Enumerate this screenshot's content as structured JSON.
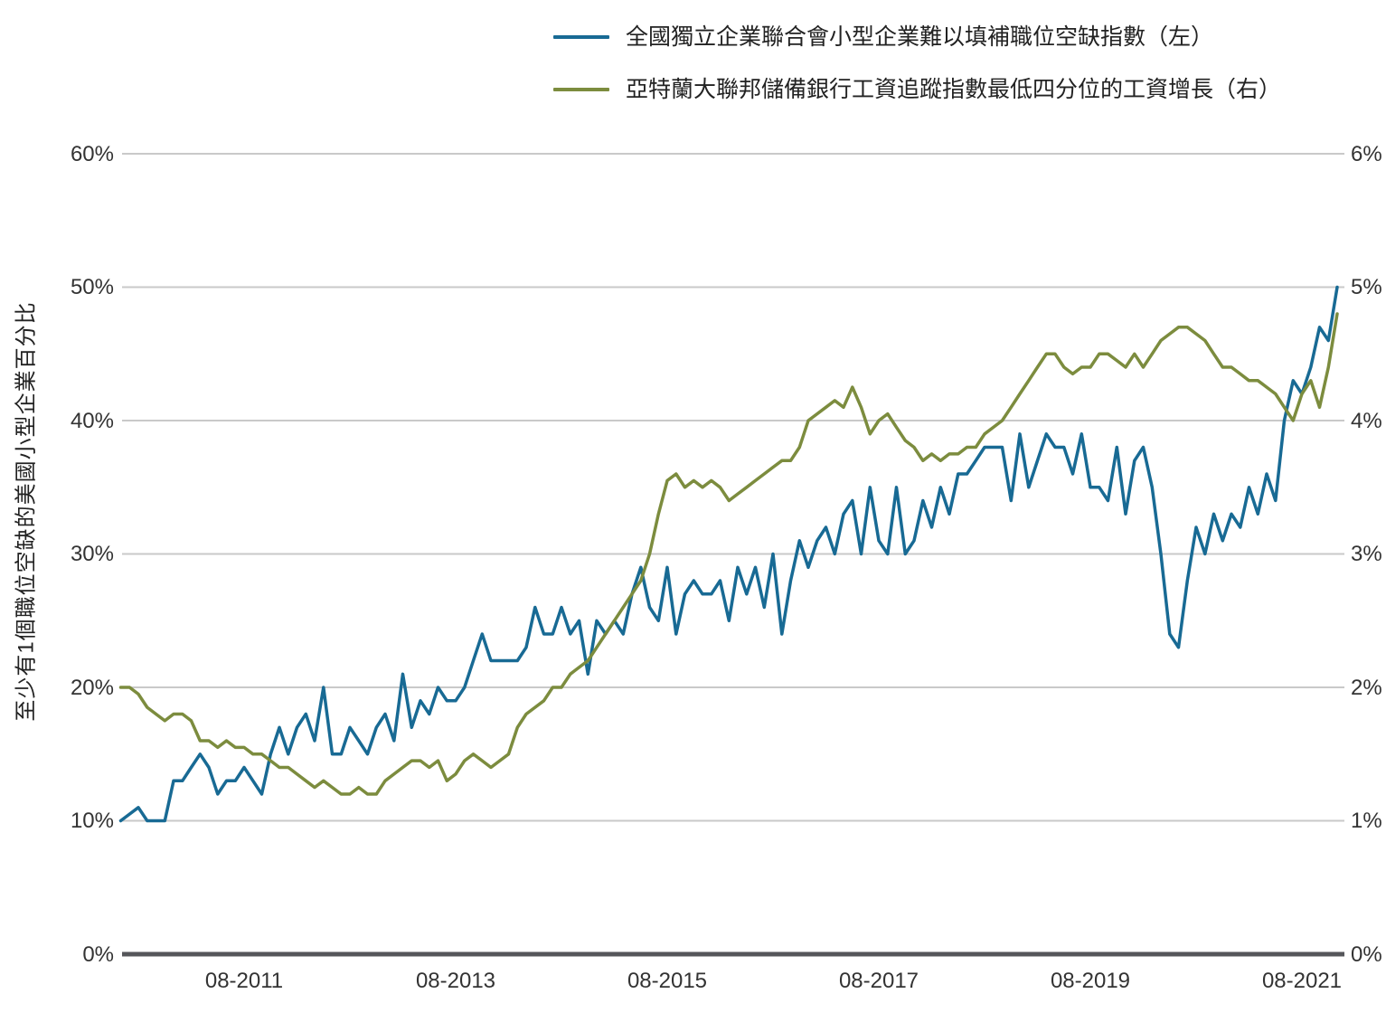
{
  "legend": [
    {
      "label": "全國獨立企業聯合會小型企業難以填補職位空缺指數（左）",
      "color": "#186A94"
    },
    {
      "label": "亞特蘭大聯邦儲備銀行工資追蹤指數最低四分位的工資增長（右）",
      "color": "#7C8C3E"
    }
  ],
  "axes": {
    "y_axis_title": "至少有1個職位空缺的美國小型企業百分比",
    "left_ticks": [
      "60%",
      "50%",
      "40%",
      "30%",
      "20%",
      "10%",
      "0%"
    ],
    "right_ticks": [
      "6%",
      "5%",
      "4%",
      "3%",
      "2%",
      "1%",
      "0%"
    ],
    "x_ticks": [
      "08-2011",
      "08-2013",
      "08-2015",
      "08-2017",
      "08-2019",
      "08-2021"
    ]
  },
  "chart_data": {
    "type": "line",
    "frequency": "monthly",
    "x_start": "2010-06",
    "x_end": "2021-12",
    "x_tick_labels": [
      "08-2011",
      "08-2013",
      "08-2015",
      "08-2017",
      "08-2019",
      "08-2021"
    ],
    "x_tick_month_index": [
      14,
      38,
      62,
      86,
      110,
      134
    ],
    "grid": "horizontal",
    "legend_position": "top",
    "left_axis": {
      "range": [
        0,
        60
      ],
      "unit": "%",
      "tick_step": 10
    },
    "right_axis": {
      "range": [
        0,
        6
      ],
      "unit": "%",
      "tick_step": 1
    },
    "series": [
      {
        "name": "全國獨立企業聯合會小型企業難以填補職位空缺指數（左）",
        "axis": "left",
        "color": "#186A94",
        "values": [
          10,
          10.5,
          11,
          10,
          10,
          10,
          13,
          13,
          14,
          15,
          14,
          12,
          13,
          13,
          14,
          13,
          12,
          15,
          17,
          15,
          17,
          18,
          16,
          20,
          15,
          15,
          17,
          16,
          15,
          17,
          18,
          16,
          21,
          17,
          19,
          18,
          20,
          19,
          19,
          20,
          22,
          24,
          22,
          22,
          22,
          22,
          23,
          26,
          24,
          24,
          26,
          24,
          25,
          21,
          25,
          24,
          25,
          24,
          27,
          29,
          26,
          25,
          29,
          24,
          27,
          28,
          27,
          27,
          28,
          25,
          29,
          27,
          29,
          26,
          30,
          24,
          28,
          31,
          29,
          31,
          32,
          30,
          33,
          34,
          30,
          35,
          31,
          30,
          35,
          30,
          31,
          34,
          32,
          35,
          33,
          36,
          36,
          37,
          38,
          38,
          38,
          34,
          39,
          35,
          37,
          39,
          38,
          38,
          36,
          39,
          35,
          35,
          34,
          38,
          33,
          37,
          38,
          35,
          30,
          24,
          23,
          28,
          32,
          30,
          33,
          31,
          33,
          32,
          35,
          33,
          36,
          34,
          40,
          43,
          42,
          44,
          47,
          46,
          50
        ]
      },
      {
        "name": "亞特蘭大聯邦儲備銀行工資追蹤指數最低四分位的工資增長（右）",
        "axis": "right",
        "color": "#7C8C3E",
        "values": [
          2.0,
          2.0,
          1.95,
          1.85,
          1.8,
          1.75,
          1.8,
          1.8,
          1.75,
          1.6,
          1.6,
          1.55,
          1.6,
          1.55,
          1.55,
          1.5,
          1.5,
          1.45,
          1.4,
          1.4,
          1.35,
          1.3,
          1.25,
          1.3,
          1.25,
          1.2,
          1.2,
          1.25,
          1.2,
          1.2,
          1.3,
          1.35,
          1.4,
          1.45,
          1.45,
          1.4,
          1.45,
          1.3,
          1.35,
          1.45,
          1.5,
          1.45,
          1.4,
          1.45,
          1.5,
          1.7,
          1.8,
          1.85,
          1.9,
          2.0,
          2.0,
          2.1,
          2.15,
          2.2,
          2.3,
          2.4,
          2.5,
          2.6,
          2.7,
          2.8,
          3.0,
          3.3,
          3.55,
          3.6,
          3.5,
          3.55,
          3.5,
          3.55,
          3.5,
          3.4,
          3.45,
          3.5,
          3.55,
          3.6,
          3.65,
          3.7,
          3.7,
          3.8,
          4.0,
          4.05,
          4.1,
          4.15,
          4.1,
          4.25,
          4.1,
          3.9,
          4.0,
          4.05,
          3.95,
          3.85,
          3.8,
          3.7,
          3.75,
          3.7,
          3.75,
          3.75,
          3.8,
          3.8,
          3.9,
          3.95,
          4.0,
          4.1,
          4.2,
          4.3,
          4.4,
          4.5,
          4.5,
          4.4,
          4.35,
          4.4,
          4.4,
          4.5,
          4.5,
          4.45,
          4.4,
          4.5,
          4.4,
          4.5,
          4.6,
          4.65,
          4.7,
          4.7,
          4.65,
          4.6,
          4.5,
          4.4,
          4.4,
          4.35,
          4.3,
          4.3,
          4.25,
          4.2,
          4.1,
          4.0,
          4.2,
          4.3,
          4.1,
          4.4,
          4.8
        ]
      }
    ],
    "colors": {
      "grid": "#c9c9c9",
      "axis": "#55565a",
      "text": "#333333"
    }
  }
}
